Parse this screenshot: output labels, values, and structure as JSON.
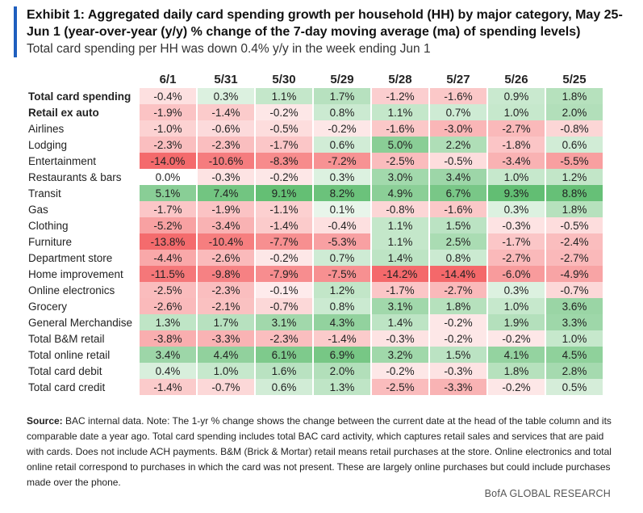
{
  "header": {
    "title": "Exhibit 1: Aggregated daily card spending growth per household (HH) by major category, May 25-Jun 1 (year-over-year (y/y) % change of the 7-day moving average (ma) of spending levels)",
    "subtitle": "Total card spending per HH was down 0.4% y/y in the week ending Jun 1"
  },
  "table": {
    "columns": [
      "6/1",
      "5/31",
      "5/30",
      "5/29",
      "5/28",
      "5/27",
      "5/26",
      "5/25"
    ],
    "rows": [
      {
        "label": "Total card spending",
        "values": [
          "-0.4%",
          "0.3%",
          "1.1%",
          "1.7%",
          "-1.2%",
          "-1.6%",
          "0.9%",
          "1.8%"
        ]
      },
      {
        "label": "Retail ex auto",
        "values": [
          "-1.9%",
          "-1.4%",
          "-0.2%",
          "0.8%",
          "1.1%",
          "0.7%",
          "1.0%",
          "2.0%"
        ]
      },
      {
        "label": "Airlines",
        "values": [
          "-1.0%",
          "-0.6%",
          "-0.5%",
          "-0.2%",
          "-1.6%",
          "-3.0%",
          "-2.7%",
          "-0.8%"
        ]
      },
      {
        "label": "Lodging",
        "values": [
          "-2.3%",
          "-2.3%",
          "-1.7%",
          "0.6%",
          "5.0%",
          "2.2%",
          "-1.8%",
          "0.6%"
        ]
      },
      {
        "label": "Entertainment",
        "values": [
          "-14.0%",
          "-10.6%",
          "-8.3%",
          "-7.2%",
          "-2.5%",
          "-0.5%",
          "-3.4%",
          "-5.5%"
        ]
      },
      {
        "label": "Restaurants & bars",
        "values": [
          "0.0%",
          "-0.3%",
          "-0.2%",
          "0.3%",
          "3.0%",
          "3.4%",
          "1.0%",
          "1.2%"
        ]
      },
      {
        "label": "Transit",
        "values": [
          "5.1%",
          "7.4%",
          "9.1%",
          "8.2%",
          "4.9%",
          "6.7%",
          "9.3%",
          "8.8%"
        ]
      },
      {
        "label": "Gas",
        "values": [
          "-1.7%",
          "-1.9%",
          "-1.1%",
          "0.1%",
          "-0.8%",
          "-1.6%",
          "0.3%",
          "1.8%"
        ]
      },
      {
        "label": "Clothing",
        "values": [
          "-5.2%",
          "-3.4%",
          "-1.4%",
          "-0.4%",
          "1.1%",
          "1.5%",
          "-0.3%",
          "-0.5%"
        ]
      },
      {
        "label": "Furniture",
        "values": [
          "-13.8%",
          "-10.4%",
          "-7.7%",
          "-5.3%",
          "1.1%",
          "2.5%",
          "-1.7%",
          "-2.4%"
        ]
      },
      {
        "label": "Department store",
        "values": [
          "-4.4%",
          "-2.6%",
          "-0.2%",
          "0.7%",
          "1.4%",
          "0.8%",
          "-2.7%",
          "-2.7%"
        ]
      },
      {
        "label": "Home improvement",
        "values": [
          "-11.5%",
          "-9.8%",
          "-7.9%",
          "-7.5%",
          "-14.2%",
          "-14.4%",
          "-6.0%",
          "-4.9%"
        ]
      },
      {
        "label": "Online electronics",
        "values": [
          "-2.5%",
          "-2.3%",
          "-0.1%",
          "1.2%",
          "-1.7%",
          "-2.7%",
          "0.3%",
          "-0.7%"
        ]
      },
      {
        "label": "Grocery",
        "values": [
          "-2.6%",
          "-2.1%",
          "-0.7%",
          "0.8%",
          "3.1%",
          "1.8%",
          "1.0%",
          "3.6%"
        ]
      },
      {
        "label": "General Merchandise",
        "values": [
          "1.3%",
          "1.7%",
          "3.1%",
          "4.3%",
          "1.4%",
          "-0.2%",
          "1.9%",
          "3.3%"
        ]
      },
      {
        "label": "Total B&M retail",
        "values": [
          "-3.8%",
          "-3.3%",
          "-2.3%",
          "-1.4%",
          "-0.3%",
          "-0.2%",
          "-0.2%",
          "1.0%"
        ]
      },
      {
        "label": "Total online retail",
        "values": [
          "3.4%",
          "4.4%",
          "6.1%",
          "6.9%",
          "3.2%",
          "1.5%",
          "4.1%",
          "4.5%"
        ]
      },
      {
        "label": "Total card debit",
        "values": [
          "0.4%",
          "1.0%",
          "1.6%",
          "2.0%",
          "-0.2%",
          "-0.3%",
          "1.8%",
          "2.8%"
        ]
      },
      {
        "label": "Total card credit",
        "values": [
          "-1.4%",
          "-0.7%",
          "0.6%",
          "1.3%",
          "-2.5%",
          "-3.3%",
          "-0.2%",
          "0.5%"
        ]
      }
    ]
  },
  "footnote": {
    "source_label": "Source:",
    "text": "BAC internal data. Note: The 1-yr % change shows the change between the current date at the head of the table column and its comparable date a year ago. Total card spending includes total BAC card activity, which captures retail sales and services that are paid with cards. Does not include ACH payments. B&M (Brick & Mortar) retail means retail purchases at the store. Online electronics and total online retail correspond to purchases in which the card was not present. These are largely online purchases but could include purchases made over the phone."
  },
  "footer": "BofA GLOBAL RESEARCH"
}
